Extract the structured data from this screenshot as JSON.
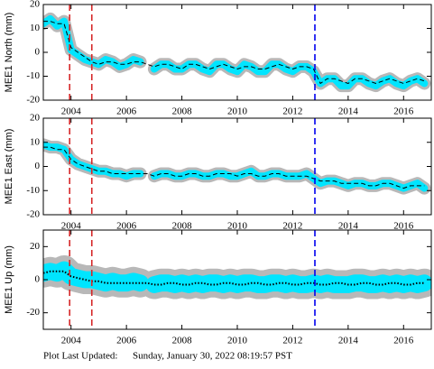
{
  "chart_data": [
    {
      "type": "line",
      "ylabel": "MEE1 North (mm)",
      "x": [
        2003,
        2003.25,
        2003.5,
        2003.75,
        2004,
        2004.25,
        2004.5,
        2004.75,
        2005,
        2005.25,
        2005.5,
        2005.75,
        2006,
        2006.25,
        2006.5,
        2006.75,
        2007,
        2007.25,
        2007.5,
        2007.75,
        2008,
        2008.25,
        2008.5,
        2008.75,
        2009,
        2009.25,
        2009.5,
        2009.75,
        2010,
        2010.25,
        2010.5,
        2010.75,
        2011,
        2011.25,
        2011.5,
        2011.75,
        2012,
        2012.25,
        2012.5,
        2012.75,
        2013,
        2013.25,
        2013.5,
        2013.75,
        2014,
        2014.25,
        2014.5,
        2014.75,
        2015,
        2015.25,
        2015.5,
        2015.75,
        2016,
        2016.25,
        2016.5,
        2016.75
      ],
      "series": [
        {
          "color": "#00e5ff",
          "values": [
            12,
            14,
            11,
            13,
            1,
            -1,
            -3,
            -4,
            -5,
            -3,
            -4,
            -6,
            -5,
            -3,
            -4,
            null,
            -7,
            -5,
            -5,
            -7,
            -7,
            -5,
            -5,
            -7,
            -8,
            -5,
            -5,
            -7,
            -8,
            -5,
            -6,
            -8,
            -8,
            -5,
            -5,
            -7,
            -8,
            -6,
            -6,
            -8,
            -13,
            -11,
            -11,
            -14,
            -14,
            -11,
            -11,
            -13,
            -14,
            -12,
            -11,
            -13,
            -14,
            -12,
            -11,
            -13
          ]
        },
        {
          "color": "#000000",
          "style": "dashed",
          "values": [
            13,
            13,
            12,
            12,
            2,
            0,
            -2,
            -4,
            -5,
            -4,
            -4,
            -5,
            -5,
            -4,
            -4,
            -5,
            -6,
            -5,
            -5,
            -6,
            -7,
            -5,
            -5,
            -6,
            -7,
            -6,
            -5,
            -6,
            -7,
            -6,
            -6,
            -7,
            -7,
            -6,
            -5,
            -6,
            -7,
            -6,
            -6,
            -7,
            -13,
            -11,
            -11,
            -12,
            -13,
            -11,
            -11,
            -12,
            -13,
            -12,
            -11,
            -12,
            -13,
            -12,
            -11,
            -12
          ]
        }
      ],
      "events": [
        {
          "x": 2003.95,
          "color": "#d62728"
        },
        {
          "x": 2004.75,
          "color": "#d62728"
        },
        {
          "x": 2012.8,
          "color": "#0000ee"
        }
      ],
      "xlim": [
        2003,
        2017
      ],
      "xticks": [
        2004,
        2006,
        2008,
        2010,
        2012,
        2014,
        2016
      ],
      "ylim": [
        -20,
        20
      ],
      "yticks": [
        -20,
        -10,
        0,
        10,
        20
      ]
    },
    {
      "type": "line",
      "ylabel": "MEE1 East (mm)",
      "x": [
        2003,
        2003.25,
        2003.5,
        2003.75,
        2004,
        2004.25,
        2004.5,
        2004.75,
        2005,
        2005.25,
        2005.5,
        2005.75,
        2006,
        2006.25,
        2006.5,
        2006.75,
        2007,
        2007.25,
        2007.5,
        2007.75,
        2008,
        2008.25,
        2008.5,
        2008.75,
        2009,
        2009.25,
        2009.5,
        2009.75,
        2010,
        2010.25,
        2010.5,
        2010.75,
        2011,
        2011.25,
        2011.5,
        2011.75,
        2012,
        2012.25,
        2012.5,
        2012.75,
        2013,
        2013.25,
        2013.5,
        2013.75,
        2014,
        2014.25,
        2014.5,
        2014.75,
        2015,
        2015.25,
        2015.5,
        2015.75,
        2016,
        2016.25,
        2016.5,
        2016.75
      ],
      "series": [
        {
          "color": "#00e5ff",
          "values": [
            9,
            8,
            8,
            7,
            3,
            1,
            0,
            -1,
            -2,
            -2,
            -3,
            -3,
            -4,
            -3,
            -3,
            null,
            -4,
            -3,
            -3,
            -4,
            -4,
            -3,
            -3,
            -4,
            -4,
            -3,
            -3,
            -4,
            -4,
            -3,
            -2,
            -4,
            -4,
            -3,
            -3,
            -4,
            -4,
            -4,
            -3,
            -5,
            -7,
            -6,
            -6,
            -7,
            -8,
            -7,
            -7,
            -8,
            -8,
            -7,
            -7,
            -8,
            -9,
            -8,
            -7,
            -9
          ]
        },
        {
          "color": "#000000",
          "style": "dashed",
          "values": [
            8,
            8,
            7,
            7,
            3,
            1,
            0,
            -1,
            -2,
            -2,
            -3,
            -3,
            -3,
            -3,
            -3,
            -3,
            -4,
            -3,
            -3,
            -4,
            -4,
            -3,
            -3,
            -4,
            -4,
            -3,
            -3,
            -3,
            -4,
            -3,
            -3,
            -4,
            -4,
            -3,
            -3,
            -4,
            -4,
            -4,
            -4,
            -5,
            -6,
            -6,
            -6,
            -7,
            -7,
            -7,
            -7,
            -8,
            -8,
            -7,
            -7,
            -8,
            -9,
            -8,
            -8,
            -8
          ]
        }
      ],
      "events": [
        {
          "x": 2003.95,
          "color": "#d62728"
        },
        {
          "x": 2004.75,
          "color": "#d62728"
        },
        {
          "x": 2012.8,
          "color": "#0000ee"
        }
      ],
      "xlim": [
        2003,
        2017
      ],
      "xticks": [
        2004,
        2006,
        2008,
        2010,
        2012,
        2014,
        2016
      ],
      "ylim": [
        -20,
        20
      ],
      "yticks": [
        -20,
        -10,
        0,
        10,
        20
      ]
    },
    {
      "type": "line",
      "ylabel": "MEE1 Up (mm)",
      "x": [
        2003,
        2003.25,
        2003.5,
        2003.75,
        2004,
        2004.25,
        2004.5,
        2004.75,
        2005,
        2005.25,
        2005.5,
        2005.75,
        2006,
        2006.25,
        2006.5,
        2006.75,
        2007,
        2007.25,
        2007.5,
        2007.75,
        2008,
        2008.25,
        2008.5,
        2008.75,
        2009,
        2009.25,
        2009.5,
        2009.75,
        2010,
        2010.25,
        2010.5,
        2010.75,
        2011,
        2011.25,
        2011.5,
        2011.75,
        2012,
        2012.25,
        2012.5,
        2012.75,
        2013,
        2013.25,
        2013.5,
        2013.75,
        2014,
        2014.25,
        2014.5,
        2014.75,
        2015,
        2015.25,
        2015.5,
        2015.75,
        2016,
        2016.25,
        2016.5,
        2016.75
      ],
      "series": [
        {
          "color": "#00e5ff",
          "values": [
            4,
            5,
            4,
            6,
            2,
            1,
            0,
            0,
            -1,
            -2,
            -1,
            -2,
            -2,
            -1,
            -2,
            null,
            -3,
            -2,
            -2,
            -3,
            -2,
            -3,
            -2,
            -3,
            -2,
            -2,
            -3,
            -2,
            -3,
            -2,
            -2,
            -3,
            -3,
            -2,
            -2,
            -3,
            -2,
            -3,
            -3,
            -2,
            -3,
            -2,
            -3,
            -3,
            -3,
            -2,
            -2,
            -3,
            -3,
            -2,
            -3,
            -2,
            -3,
            -2,
            -3,
            -2
          ]
        },
        {
          "color": "#000000",
          "style": "dotted",
          "values": [
            4,
            5,
            5,
            5,
            2,
            1,
            0,
            -1,
            -1,
            -2,
            -2,
            -2,
            -2,
            -2,
            -2,
            -2,
            -3,
            -3,
            -2,
            -2,
            -3,
            -3,
            -2,
            -2,
            -3,
            -3,
            -2,
            -2,
            -3,
            -3,
            -2,
            -2,
            -3,
            -3,
            -2,
            -2,
            -3,
            -3,
            -2,
            -2,
            -3,
            -3,
            -2,
            -2,
            -3,
            -3,
            -2,
            -2,
            -3,
            -3,
            -2,
            -2,
            -3,
            -3,
            -2,
            -2
          ]
        }
      ],
      "events": [
        {
          "x": 2003.95,
          "color": "#d62728"
        },
        {
          "x": 2004.75,
          "color": "#d62728"
        },
        {
          "x": 2012.8,
          "color": "#0000ee"
        }
      ],
      "xlim": [
        2003,
        2017
      ],
      "xticks": [
        2004,
        2006,
        2008,
        2010,
        2012,
        2014,
        2016
      ],
      "ylim": [
        -30,
        30
      ],
      "yticks": [
        -20,
        0,
        20
      ]
    }
  ],
  "footer": {
    "label": "Plot Last Updated:",
    "date": "Sunday, January 30, 2022 08:19:57 PST"
  }
}
